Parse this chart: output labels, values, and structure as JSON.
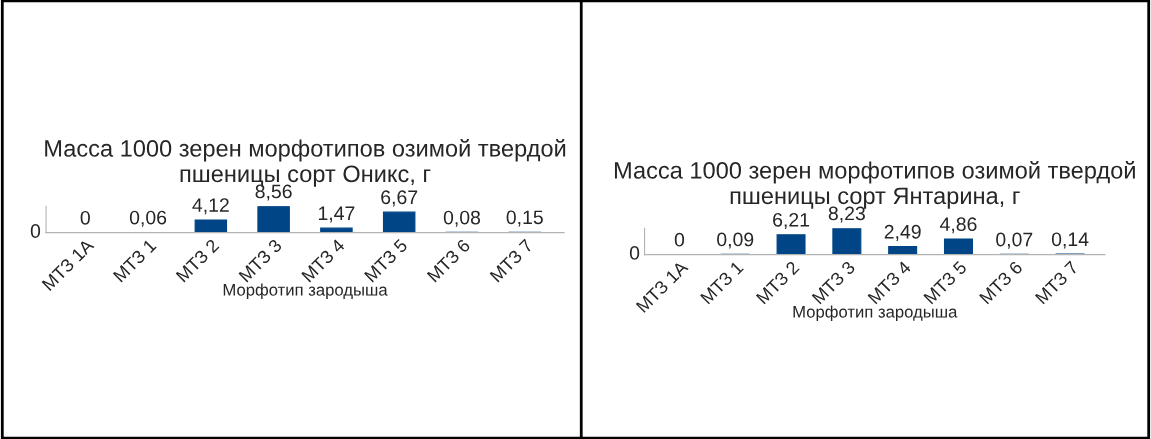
{
  "chart_data": [
    {
      "type": "bar",
      "title": "Масса 1000 зерен морфотипов озимой твердой пшеницы сорт Оникс, г",
      "xlabel": "Морфотип зародыша",
      "categories": [
        "МТЗ 1А",
        "МТЗ 1",
        "МТЗ 2",
        "МТЗ 3",
        "МТЗ 4",
        "МТЗ 5",
        "МТЗ 6",
        "МТЗ 7"
      ],
      "values": [
        0,
        0.06,
        4.12,
        8.56,
        1.47,
        6.67,
        0.08,
        0.15
      ],
      "value_labels": [
        "0",
        "0,06",
        "4,12",
        "8,56",
        "1,47",
        "6,67",
        "0,08",
        "0,15"
      ],
      "color": "#004586",
      "annotations": [
        "0"
      ]
    },
    {
      "type": "bar",
      "title": "Масса 1000 зерен морфотипов озимой твердой пшеницы сорт Янтарина, г",
      "xlabel": "Морфотип зародыша",
      "categories": [
        "МТЗ 1А",
        "МТЗ 1",
        "МТЗ 2",
        "МТЗ 3",
        "МТЗ 4",
        "МТЗ 5",
        "МТЗ 6",
        "МТЗ 7"
      ],
      "values": [
        0,
        0.09,
        6.21,
        8.23,
        2.49,
        4.86,
        0.07,
        0.14
      ],
      "value_labels": [
        "0",
        "0,09",
        "6,21",
        "8,23",
        "2,49",
        "4,86",
        "0,07",
        "0,14"
      ],
      "color": "#004586",
      "annotations": [
        "0"
      ]
    }
  ]
}
